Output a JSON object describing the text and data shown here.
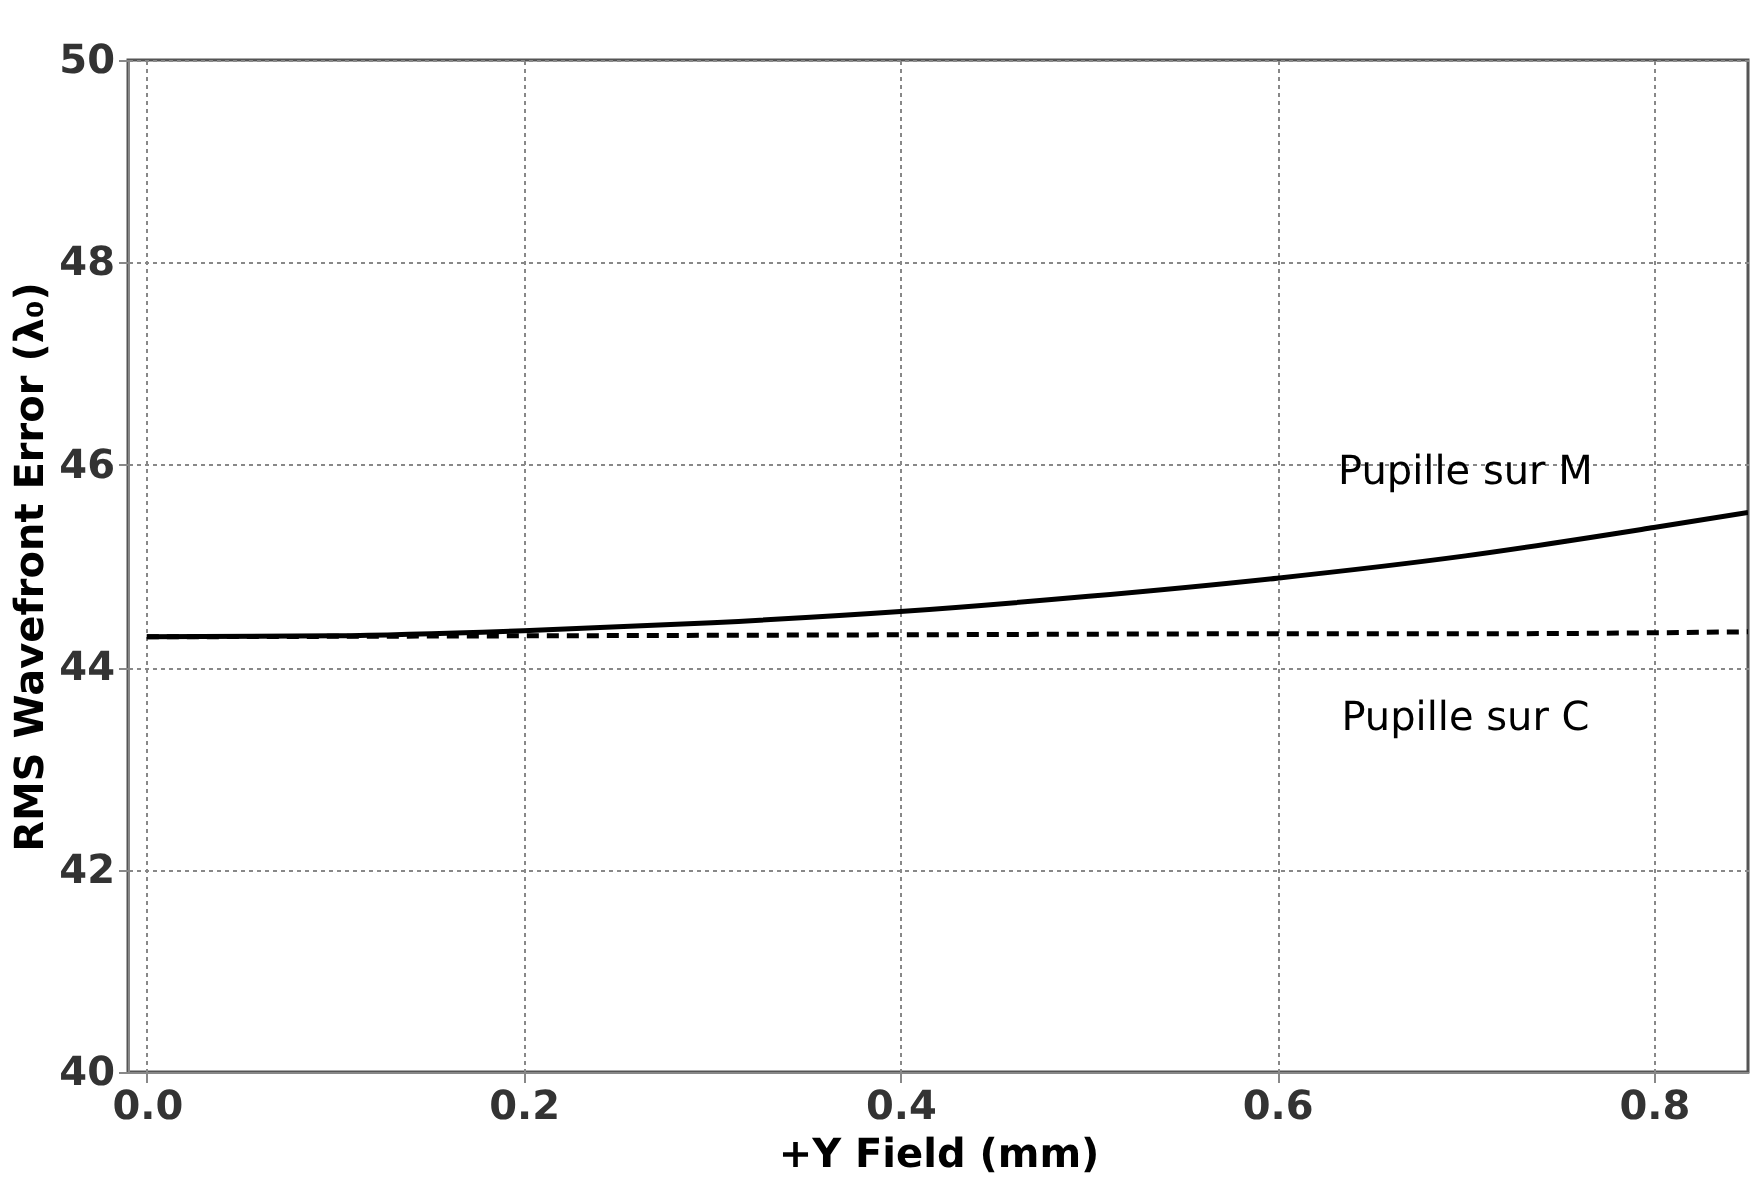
{
  "chart_data": {
    "type": "line",
    "xlabel": "+Y Field (mm)",
    "ylabel": "RMS Wavefront Error (λ₀)",
    "series": [
      {
        "name": "Pupille sur M",
        "color": "#000000",
        "line_style": "solid",
        "x": [
          0.0,
          0.1,
          0.2,
          0.3,
          0.4,
          0.5,
          0.6,
          0.7,
          0.8,
          0.85
        ],
        "values": [
          44.3,
          44.31,
          44.36,
          44.44,
          44.55,
          44.7,
          44.88,
          45.1,
          45.38,
          45.53
        ]
      },
      {
        "name": "Pupille sur C",
        "color": "#000000",
        "line_style": "dashed",
        "x": [
          0.0,
          0.2,
          0.4,
          0.6,
          0.7,
          0.8,
          0.85
        ],
        "values": [
          44.3,
          44.31,
          44.32,
          44.33,
          44.33,
          44.34,
          44.35
        ]
      }
    ],
    "xlim": [
      -0.01,
      0.85
    ],
    "xticks": [
      {
        "value": 0.0,
        "label": "0.0"
      },
      {
        "value": 0.2,
        "label": "0.2"
      },
      {
        "value": 0.4,
        "label": "0.4"
      },
      {
        "value": 0.6,
        "label": "0.6"
      },
      {
        "value": 0.8,
        "label": "0.8"
      }
    ],
    "ylim": [
      40,
      50
    ],
    "yticks": [
      40,
      42,
      44,
      46,
      48,
      50
    ],
    "grid": true,
    "legend": false
  }
}
